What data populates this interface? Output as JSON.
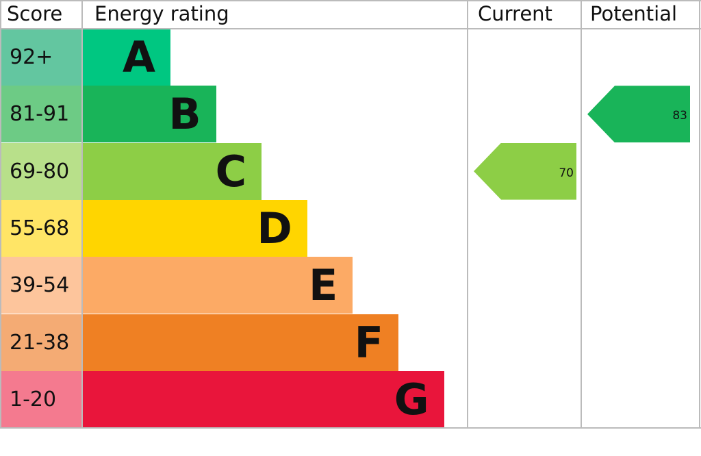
{
  "chart_data": {
    "type": "bar",
    "headers": {
      "score": "Score",
      "rating": "Energy rating",
      "current": "Current",
      "potential": "Potential"
    },
    "bands": [
      {
        "letter": "A",
        "range": "92+",
        "color": "#00c781",
        "tint": "#63c6a0"
      },
      {
        "letter": "B",
        "range": "81-91",
        "color": "#19b459",
        "tint": "#6dcb85"
      },
      {
        "letter": "C",
        "range": "69-80",
        "color": "#8dce46",
        "tint": "#b8e08a"
      },
      {
        "letter": "D",
        "range": "55-68",
        "color": "#ffd500",
        "tint": "#ffe566"
      },
      {
        "letter": "E",
        "range": "39-54",
        "color": "#fcaa65",
        "tint": "#fdc59c"
      },
      {
        "letter": "F",
        "range": "21-38",
        "color": "#ef8023",
        "tint": "#f4ab74"
      },
      {
        "letter": "G",
        "range": "1-20",
        "color": "#e9153b",
        "tint": "#f47a8f"
      }
    ],
    "current": {
      "value": "70",
      "band": "C",
      "color": "#8dce46"
    },
    "potential": {
      "value": "83",
      "band": "B",
      "color": "#19b459"
    }
  }
}
